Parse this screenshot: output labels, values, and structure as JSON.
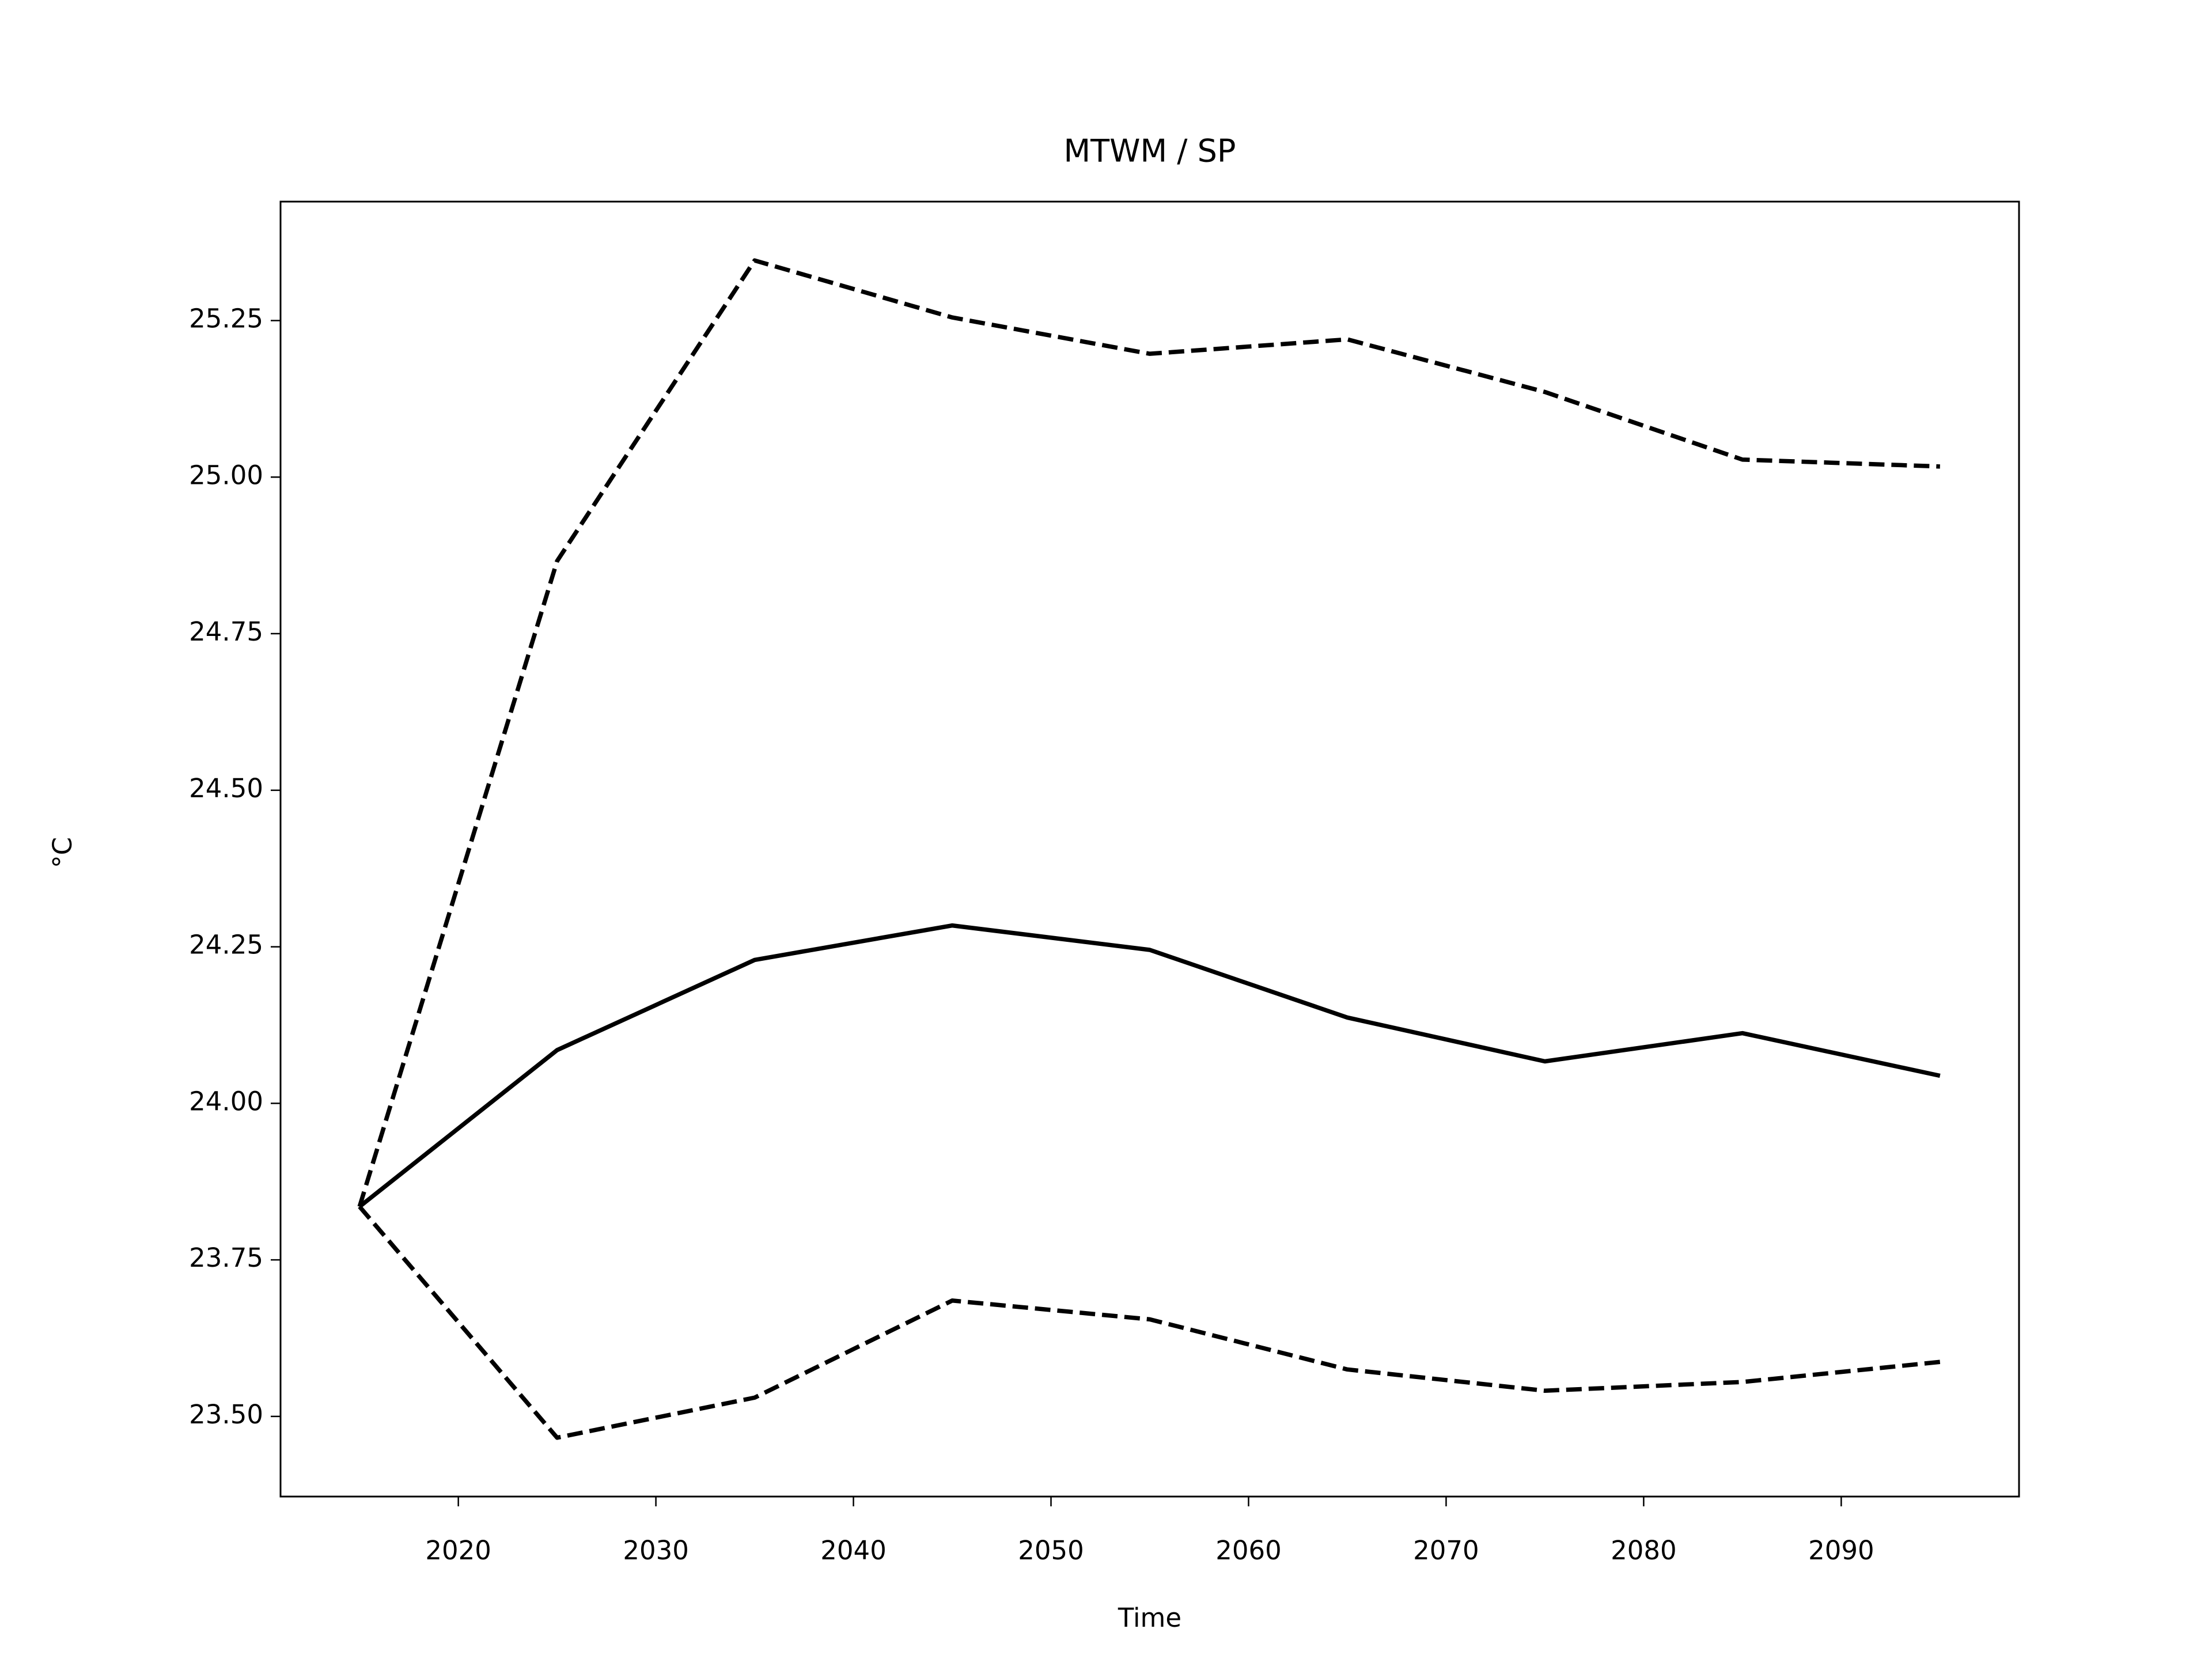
{
  "chart_data": {
    "type": "line",
    "title": "MTWM / SP",
    "x_label": "Time",
    "y_label": "°C",
    "x": [
      2015,
      2025,
      2035,
      2045,
      2055,
      2065,
      2075,
      2085,
      2095
    ],
    "series": [
      {
        "color": "#000000",
        "dash": "solid",
        "values": [
          23.835,
          24.085,
          24.229,
          24.284,
          24.245,
          24.137,
          24.067,
          24.112,
          24.044
        ]
      },
      {
        "color": "#000000",
        "dash": "dashed",
        "values": [
          23.835,
          24.866,
          25.346,
          25.255,
          25.197,
          25.22,
          25.136,
          25.028,
          25.017
        ]
      },
      {
        "color": "#000000",
        "dash": "dashed",
        "values": [
          23.835,
          23.466,
          23.53,
          23.685,
          23.655,
          23.575,
          23.541,
          23.555,
          23.587
        ]
      }
    ],
    "xlim": [
      2011,
      2099
    ],
    "xticks": [
      2020,
      2030,
      2040,
      2050,
      2060,
      2070,
      2080,
      2090
    ],
    "ylim": [
      23.372,
      25.44
    ],
    "yticks": [
      {
        "value": 23.5,
        "label": "23.50"
      },
      23.75,
      {
        "value": 24,
        "label": "24.00"
      },
      24.25,
      {
        "value": 24.5,
        "label": "24.50"
      },
      24.75,
      {
        "value": 25,
        "label": "25.00"
      },
      25.25
    ],
    "grid": false
  }
}
